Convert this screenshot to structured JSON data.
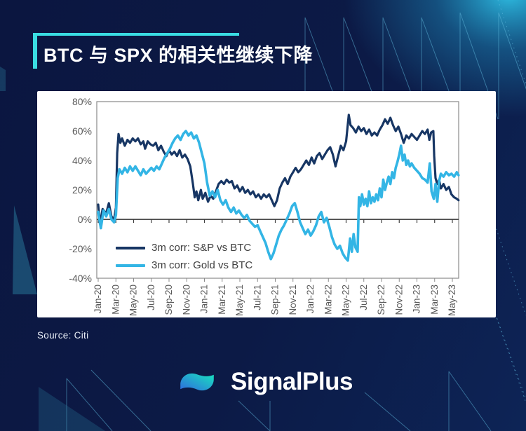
{
  "page": {
    "title": "BTC 与 SPX 的相关性继续下降",
    "source": "Source: Citi",
    "brand": "SignalPlus"
  },
  "colors": {
    "background": "#0B1640",
    "accent_cyan": "#3ADCE2",
    "card": "#FFFFFF",
    "series_spx": "#173664",
    "series_gold": "#33B5E5",
    "axis_frame": "#8A8A8A",
    "axis_zero": "#3F3F3F",
    "tick_text": "#595959",
    "legend_text": "#3F3F3F",
    "source_text": "#E8EDF6",
    "pattern_line": "#5FB9DD",
    "pattern_fill": "#2A7C9E",
    "glow": "#2FC3E8",
    "logo_blue": "#2F6BDF",
    "logo_teal": "#18E3BE"
  },
  "chart_data": {
    "type": "line",
    "title": "",
    "xlabel": "",
    "ylabel": "",
    "grid": false,
    "legend_position": "inside-bottom-left",
    "ylim": [
      -40,
      80
    ],
    "y_ticks": [
      "80%",
      "60%",
      "40%",
      "20%",
      "0%",
      "-20%",
      "-40%"
    ],
    "x_ticks": [
      "Jan-20",
      "Mar-20",
      "May-20",
      "Jul-20",
      "Sep-20",
      "Nov-20",
      "Jan-21",
      "Mar-21",
      "May-21",
      "Jul-21",
      "Sep-21",
      "Nov-21",
      "Jan-22",
      "Mar-22",
      "May-22",
      "Jul-22",
      "Sep-22",
      "Nov-22",
      "Jan-23",
      "Mar-23",
      "May-23"
    ],
    "x_axis_note": "series x values are months since Jan-2020; y values are correlation in %",
    "series": [
      {
        "name": "3m corr: S&P vs BTC",
        "color": "#173664",
        "points": [
          [
            0,
            10
          ],
          [
            0.2,
            -3
          ],
          [
            0.5,
            7
          ],
          [
            0.9,
            4
          ],
          [
            1.2,
            11
          ],
          [
            1.5,
            2
          ],
          [
            1.8,
            0
          ],
          [
            2,
            8
          ],
          [
            2.15,
            45
          ],
          [
            2.3,
            58
          ],
          [
            2.5,
            52
          ],
          [
            2.7,
            55
          ],
          [
            3,
            50
          ],
          [
            3.3,
            54
          ],
          [
            3.6,
            52
          ],
          [
            3.9,
            55
          ],
          [
            4.2,
            53
          ],
          [
            4.5,
            55
          ],
          [
            4.8,
            51
          ],
          [
            5.1,
            53
          ],
          [
            5.3,
            48
          ],
          [
            5.6,
            53
          ],
          [
            5.9,
            51
          ],
          [
            6.2,
            50
          ],
          [
            6.5,
            52
          ],
          [
            6.8,
            47
          ],
          [
            7.1,
            50
          ],
          [
            7.4,
            46
          ],
          [
            7.7,
            43
          ],
          [
            8,
            47
          ],
          [
            8.3,
            44
          ],
          [
            8.6,
            46
          ],
          [
            8.9,
            43
          ],
          [
            9.2,
            47
          ],
          [
            9.5,
            42
          ],
          [
            9.8,
            44
          ],
          [
            10.1,
            41
          ],
          [
            10.4,
            36
          ],
          [
            10.7,
            24
          ],
          [
            10.9,
            15
          ],
          [
            11.1,
            19
          ],
          [
            11.3,
            13
          ],
          [
            11.6,
            20
          ],
          [
            11.8,
            14
          ],
          [
            12.1,
            18
          ],
          [
            12.4,
            12
          ],
          [
            12.7,
            16
          ],
          [
            13,
            14
          ],
          [
            13.3,
            19
          ],
          [
            13.6,
            24
          ],
          [
            13.9,
            26
          ],
          [
            14.2,
            24
          ],
          [
            14.5,
            27
          ],
          [
            14.8,
            25
          ],
          [
            15.1,
            26
          ],
          [
            15.4,
            21
          ],
          [
            15.7,
            23
          ],
          [
            16,
            19
          ],
          [
            16.3,
            22
          ],
          [
            16.6,
            18
          ],
          [
            16.9,
            20
          ],
          [
            17.2,
            17
          ],
          [
            17.5,
            19
          ],
          [
            17.8,
            15
          ],
          [
            18.1,
            17
          ],
          [
            18.4,
            14
          ],
          [
            18.7,
            17
          ],
          [
            19,
            15
          ],
          [
            19.3,
            17
          ],
          [
            19.6,
            13
          ],
          [
            19.9,
            9
          ],
          [
            20.2,
            13
          ],
          [
            20.5,
            21
          ],
          [
            20.8,
            25
          ],
          [
            21.1,
            28
          ],
          [
            21.4,
            24
          ],
          [
            21.7,
            29
          ],
          [
            22,
            32
          ],
          [
            22.3,
            35
          ],
          [
            22.6,
            32
          ],
          [
            22.9,
            34
          ],
          [
            23.2,
            37
          ],
          [
            23.5,
            40
          ],
          [
            23.8,
            37
          ],
          [
            24.1,
            42
          ],
          [
            24.4,
            38
          ],
          [
            24.7,
            43
          ],
          [
            25,
            45
          ],
          [
            25.3,
            41
          ],
          [
            25.6,
            44
          ],
          [
            25.9,
            47
          ],
          [
            26.2,
            49
          ],
          [
            26.5,
            44
          ],
          [
            26.8,
            36
          ],
          [
            27.1,
            43
          ],
          [
            27.4,
            50
          ],
          [
            27.7,
            47
          ],
          [
            28,
            53
          ],
          [
            28.3,
            71
          ],
          [
            28.5,
            64
          ],
          [
            28.8,
            62
          ],
          [
            29.1,
            59
          ],
          [
            29.4,
            63
          ],
          [
            29.7,
            60
          ],
          [
            30,
            62
          ],
          [
            30.3,
            58
          ],
          [
            30.6,
            61
          ],
          [
            30.9,
            57
          ],
          [
            31.2,
            59
          ],
          [
            31.5,
            57
          ],
          [
            31.8,
            61
          ],
          [
            32.1,
            64
          ],
          [
            32.4,
            68
          ],
          [
            32.7,
            65
          ],
          [
            33,
            69
          ],
          [
            33.3,
            64
          ],
          [
            33.6,
            60
          ],
          [
            33.9,
            63
          ],
          [
            34.2,
            58
          ],
          [
            34.5,
            52
          ],
          [
            34.8,
            57
          ],
          [
            35.1,
            55
          ],
          [
            35.4,
            58
          ],
          [
            35.7,
            56
          ],
          [
            36,
            54
          ],
          [
            36.3,
            57
          ],
          [
            36.6,
            60
          ],
          [
            36.9,
            58
          ],
          [
            37.2,
            61
          ],
          [
            37.4,
            54
          ],
          [
            37.6,
            59
          ],
          [
            37.85,
            60
          ],
          [
            37.95,
            43
          ],
          [
            38.1,
            28
          ],
          [
            38.3,
            24
          ],
          [
            38.5,
            27
          ],
          [
            38.7,
            21
          ],
          [
            39,
            24
          ],
          [
            39.3,
            20
          ],
          [
            39.6,
            22
          ],
          [
            39.9,
            17
          ],
          [
            40.2,
            15
          ],
          [
            40.5,
            14
          ],
          [
            40.7,
            13
          ]
        ]
      },
      {
        "name": "3m corr: Gold vs BTC",
        "color": "#33B5E5",
        "points": [
          [
            0,
            5
          ],
          [
            0.3,
            -6
          ],
          [
            0.6,
            6
          ],
          [
            0.9,
            2
          ],
          [
            1.2,
            7
          ],
          [
            1.5,
            0
          ],
          [
            1.8,
            -2
          ],
          [
            2,
            3
          ],
          [
            2.2,
            28
          ],
          [
            2.4,
            34
          ],
          [
            2.7,
            31
          ],
          [
            3,
            35
          ],
          [
            3.3,
            32
          ],
          [
            3.6,
            36
          ],
          [
            3.9,
            33
          ],
          [
            4.2,
            36
          ],
          [
            4.5,
            33
          ],
          [
            4.8,
            30
          ],
          [
            5.1,
            34
          ],
          [
            5.4,
            31
          ],
          [
            5.7,
            33
          ],
          [
            6,
            35
          ],
          [
            6.3,
            33
          ],
          [
            6.6,
            36
          ],
          [
            6.9,
            34
          ],
          [
            7.2,
            38
          ],
          [
            7.5,
            42
          ],
          [
            7.8,
            45
          ],
          [
            8.1,
            48
          ],
          [
            8.4,
            52
          ],
          [
            8.7,
            55
          ],
          [
            9,
            57
          ],
          [
            9.3,
            54
          ],
          [
            9.6,
            58
          ],
          [
            9.9,
            60
          ],
          [
            10.2,
            57
          ],
          [
            10.5,
            59
          ],
          [
            10.8,
            55
          ],
          [
            11.1,
            57
          ],
          [
            11.4,
            52
          ],
          [
            11.7,
            45
          ],
          [
            12,
            38
          ],
          [
            12.3,
            25
          ],
          [
            12.6,
            16
          ],
          [
            12.9,
            19
          ],
          [
            13.2,
            15
          ],
          [
            13.5,
            20
          ],
          [
            13.8,
            13
          ],
          [
            14.1,
            10
          ],
          [
            14.4,
            13
          ],
          [
            14.7,
            8
          ],
          [
            15,
            5
          ],
          [
            15.3,
            8
          ],
          [
            15.6,
            4
          ],
          [
            15.9,
            6
          ],
          [
            16.2,
            3
          ],
          [
            16.5,
            1
          ],
          [
            16.8,
            3
          ],
          [
            17.1,
            -1
          ],
          [
            17.4,
            -3
          ],
          [
            17.7,
            -5
          ],
          [
            18,
            -4
          ],
          [
            18.3,
            -8
          ],
          [
            18.6,
            -12
          ],
          [
            18.9,
            -16
          ],
          [
            19.2,
            -22
          ],
          [
            19.5,
            -27
          ],
          [
            19.8,
            -23
          ],
          [
            20.1,
            -17
          ],
          [
            20.4,
            -11
          ],
          [
            20.7,
            -7
          ],
          [
            21,
            -4
          ],
          [
            21.3,
            0
          ],
          [
            21.6,
            4
          ],
          [
            21.9,
            9
          ],
          [
            22.2,
            11
          ],
          [
            22.5,
            5
          ],
          [
            22.8,
            -2
          ],
          [
            23.1,
            -6
          ],
          [
            23.4,
            -10
          ],
          [
            23.7,
            -7
          ],
          [
            24,
            -11
          ],
          [
            24.3,
            -8
          ],
          [
            24.6,
            -4
          ],
          [
            24.9,
            2
          ],
          [
            25.2,
            5
          ],
          [
            25.5,
            -2
          ],
          [
            25.8,
            1
          ],
          [
            26.1,
            -5
          ],
          [
            26.4,
            -12
          ],
          [
            26.7,
            -17
          ],
          [
            27,
            -20
          ],
          [
            27.3,
            -18
          ],
          [
            27.6,
            -23
          ],
          [
            27.9,
            -26
          ],
          [
            28.2,
            -28
          ],
          [
            28.45,
            -13
          ],
          [
            28.65,
            -22
          ],
          [
            28.85,
            -10
          ],
          [
            29.05,
            -19
          ],
          [
            29.3,
            -22
          ],
          [
            29.45,
            15
          ],
          [
            29.6,
            9
          ],
          [
            29.8,
            17
          ],
          [
            30,
            10
          ],
          [
            30.2,
            14
          ],
          [
            30.4,
            9
          ],
          [
            30.6,
            19
          ],
          [
            30.8,
            11
          ],
          [
            31,
            15
          ],
          [
            31.2,
            12
          ],
          [
            31.4,
            17
          ],
          [
            31.6,
            13
          ],
          [
            31.8,
            21
          ],
          [
            32,
            15
          ],
          [
            32.2,
            27
          ],
          [
            32.4,
            20
          ],
          [
            32.6,
            25
          ],
          [
            32.8,
            29
          ],
          [
            33,
            24
          ],
          [
            33.2,
            32
          ],
          [
            33.4,
            28
          ],
          [
            33.6,
            35
          ],
          [
            33.8,
            39
          ],
          [
            34,
            44
          ],
          [
            34.2,
            50
          ],
          [
            34.4,
            40
          ],
          [
            34.6,
            44
          ],
          [
            34.8,
            37
          ],
          [
            35,
            40
          ],
          [
            35.2,
            36
          ],
          [
            35.4,
            38
          ],
          [
            35.7,
            35
          ],
          [
            36,
            33
          ],
          [
            36.3,
            31
          ],
          [
            36.6,
            28
          ],
          [
            36.9,
            27
          ],
          [
            37.2,
            25
          ],
          [
            37.45,
            38
          ],
          [
            37.65,
            19
          ],
          [
            37.9,
            14
          ],
          [
            38.1,
            24
          ],
          [
            38.3,
            12
          ],
          [
            38.5,
            26
          ],
          [
            38.7,
            31
          ],
          [
            39,
            29
          ],
          [
            39.3,
            32
          ],
          [
            39.6,
            30
          ],
          [
            39.9,
            31
          ],
          [
            40.2,
            29
          ],
          [
            40.5,
            32
          ],
          [
            40.7,
            30
          ]
        ]
      }
    ]
  }
}
